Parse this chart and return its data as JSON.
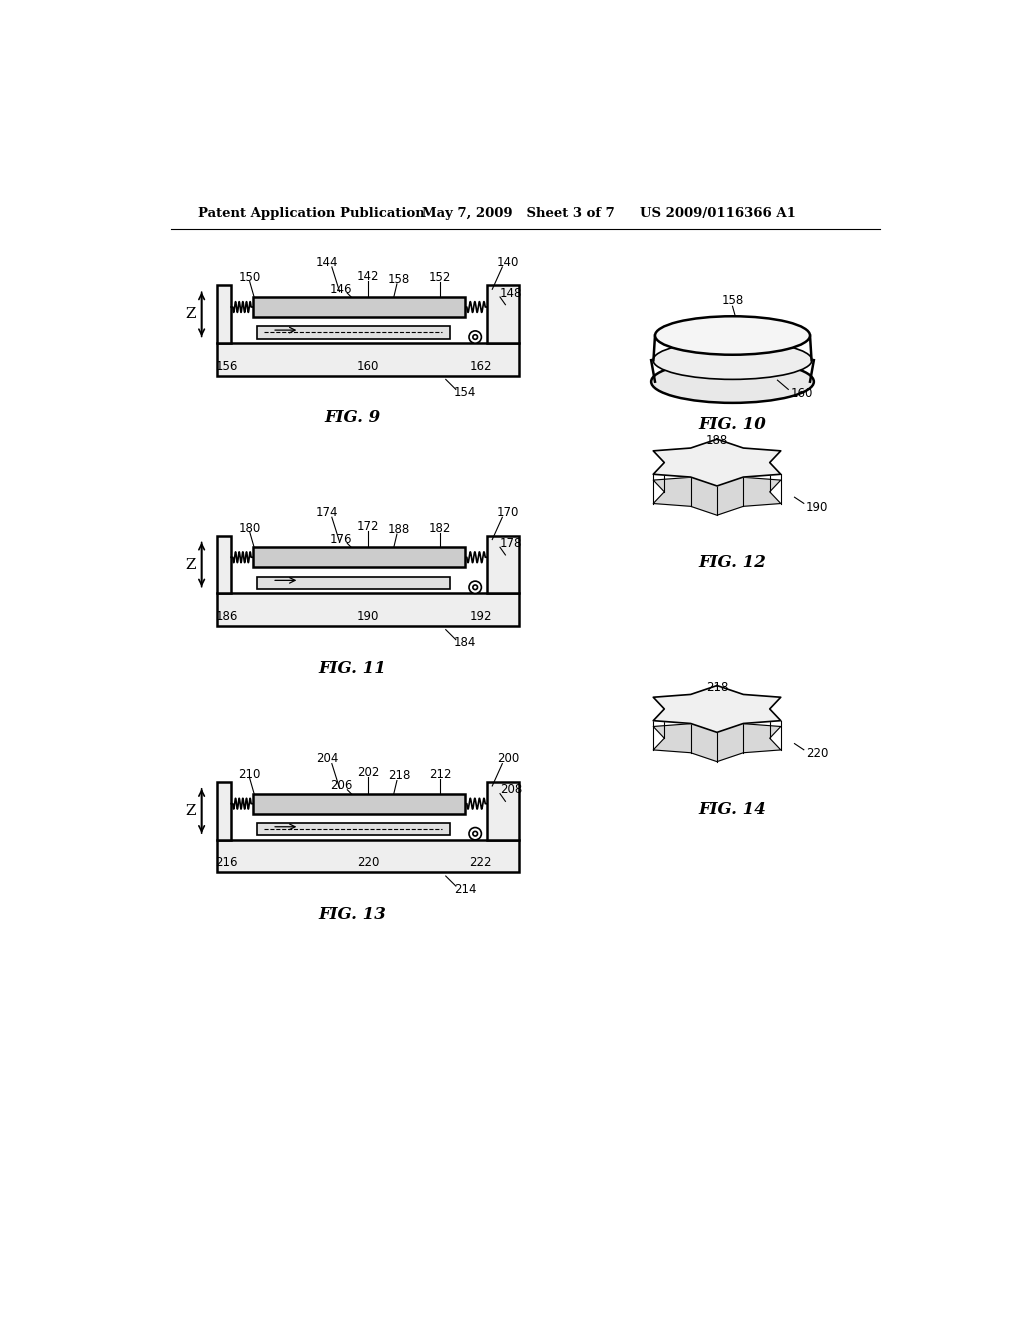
{
  "bg_color": "#ffffff",
  "text_color": "#000000",
  "header_left": "Patent Application Publication",
  "header_mid": "May 7, 2009   Sheet 3 of 7",
  "header_right": "US 2009/0116366 A1",
  "fig9_label": "FIG. 9",
  "fig10_label": "FIG. 10",
  "fig11_label": "FIG. 11",
  "fig12_label": "FIG. 12",
  "fig13_label": "FIG. 13",
  "fig14_label": "FIG. 14"
}
